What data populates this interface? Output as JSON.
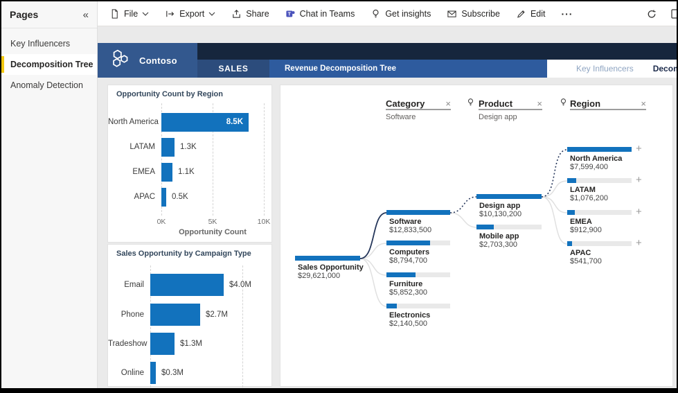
{
  "icons": {
    "collapse": "«",
    "close": "×",
    "plus": "+",
    "more": "···"
  },
  "colors": {
    "accent": "#1272BD",
    "navy": "#16263D",
    "brand_blue": "#33588E",
    "sales_tab_blue": "#2C4C7C",
    "title_bar_blue": "#2E5B9E",
    "selected_gold": "#F2C811"
  },
  "sidebar": {
    "title": "Pages",
    "items": [
      {
        "label": "Key Influencers",
        "selected": false
      },
      {
        "label": "Decomposition Tree",
        "selected": true
      },
      {
        "label": "Anomaly Detection",
        "selected": false
      }
    ]
  },
  "toolbar": {
    "items": [
      {
        "label": "File"
      },
      {
        "label": "Export"
      },
      {
        "label": "Share"
      },
      {
        "label": "Chat in Teams"
      },
      {
        "label": "Get insights"
      },
      {
        "label": "Subscribe"
      },
      {
        "label": "Edit"
      }
    ]
  },
  "header": {
    "brand": "Contoso",
    "nav_tab": "SALES",
    "page_title": "Revenue Decomposition Tree",
    "report_tabs": [
      {
        "label": "Key Influencers",
        "active": false
      },
      {
        "label": "Decomposition Tree",
        "active": true
      }
    ]
  },
  "chart_data": [
    {
      "type": "bar",
      "orientation": "horizontal",
      "title": "Opportunity Count by Region",
      "categories": [
        "North America",
        "LATAM",
        "EMEA",
        "APAC"
      ],
      "values": [
        8500,
        1300,
        1100,
        500
      ],
      "value_labels": [
        "8.5K",
        "1.3K",
        "1.1K",
        "0.5K"
      ],
      "xlabel": "Opportunity Count",
      "xticks": [
        "0K",
        "5K",
        "10K"
      ],
      "xlim": [
        0,
        10000
      ],
      "grid": "dashed-vertical",
      "legend": "none"
    },
    {
      "type": "bar",
      "orientation": "horizontal",
      "title": "Sales Opportunity by Campaign Type",
      "categories": [
        "Email",
        "Phone",
        "Tradeshow",
        "Online"
      ],
      "values": [
        4000000,
        2700000,
        1300000,
        300000
      ],
      "value_labels": [
        "$4.0M",
        "$2.7M",
        "$1.3M",
        "$0.3M"
      ],
      "xlabel": "",
      "xticks": [],
      "xlim": [
        0,
        5000000
      ],
      "grid": "dashed-vertical",
      "legend": "none"
    }
  ],
  "decomposition_tree": {
    "levels": [
      {
        "name": "",
        "nodes": [
          {
            "label": "Sales Opportunity",
            "amount": 29621000,
            "value": "$29,621,000",
            "selected": true
          }
        ]
      },
      {
        "name": "Category",
        "selected_value": "Software",
        "ai_split": false,
        "nodes": [
          {
            "label": "Software",
            "amount": 12833500,
            "value": "$12,833,500",
            "selected": true
          },
          {
            "label": "Computers",
            "amount": 8794700,
            "value": "$8,794,700",
            "selected": false
          },
          {
            "label": "Furniture",
            "amount": 5852300,
            "value": "$5,852,300",
            "selected": false
          },
          {
            "label": "Electronics",
            "amount": 2140500,
            "value": "$2,140,500",
            "selected": false
          }
        ]
      },
      {
        "name": "Product",
        "selected_value": "Design app",
        "ai_split": true,
        "nodes": [
          {
            "label": "Design app",
            "amount": 10130200,
            "value": "$10,130,200",
            "selected": true
          },
          {
            "label": "Mobile app",
            "amount": 2703300,
            "value": "$2,703,300",
            "selected": false
          }
        ]
      },
      {
        "name": "Region",
        "selected_value": "",
        "ai_split": true,
        "expandable": true,
        "nodes": [
          {
            "label": "North America",
            "amount": 7599400,
            "value": "$7,599,400",
            "selected": false
          },
          {
            "label": "LATAM",
            "amount": 1076200,
            "value": "$1,076,200",
            "selected": false
          },
          {
            "label": "EMEA",
            "amount": 912900,
            "value": "$912,900",
            "selected": false
          },
          {
            "label": "APAC",
            "amount": 541700,
            "value": "$541,700",
            "selected": false
          }
        ]
      }
    ]
  }
}
